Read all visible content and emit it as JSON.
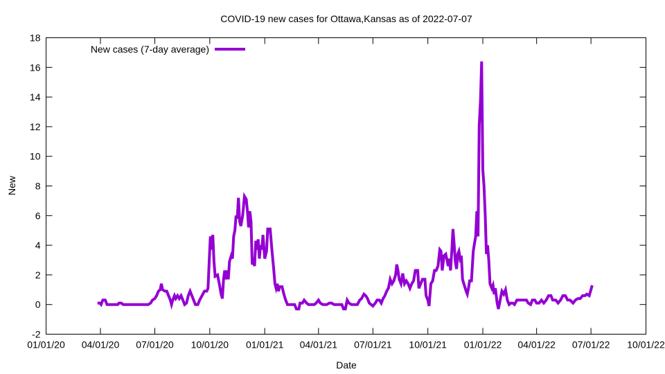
{
  "chart_data": {
    "type": "line",
    "title": "COVID-19 new cases for Ottawa,Kansas as of 2022-07-07",
    "xlabel": "Date",
    "ylabel": "New",
    "ylim": [
      -2,
      18
    ],
    "xlim": [
      "2020-01-01",
      "2022-10-01"
    ],
    "yticks": [
      -2,
      0,
      2,
      4,
      6,
      8,
      10,
      12,
      14,
      16,
      18
    ],
    "xticks": [
      {
        "date": "2020-01-01",
        "label": "01/01/20"
      },
      {
        "date": "2020-04-01",
        "label": "04/01/20"
      },
      {
        "date": "2020-07-01",
        "label": "07/01/20"
      },
      {
        "date": "2020-10-01",
        "label": "10/01/20"
      },
      {
        "date": "2021-01-01",
        "label": "01/01/21"
      },
      {
        "date": "2021-04-01",
        "label": "04/01/21"
      },
      {
        "date": "2021-07-01",
        "label": "07/01/21"
      },
      {
        "date": "2021-10-01",
        "label": "10/01/21"
      },
      {
        "date": "2022-01-01",
        "label": "01/01/22"
      },
      {
        "date": "2022-04-01",
        "label": "04/01/22"
      },
      {
        "date": "2022-07-01",
        "label": "07/01/22"
      },
      {
        "date": "2022-10-01",
        "label": "10/01/22"
      }
    ],
    "grid": false,
    "legend_position": "top-left",
    "series": [
      {
        "name": "New cases (7-day average)",
        "color": "#9400d3",
        "points": [
          [
            "2020-03-27",
            0.1
          ],
          [
            "2020-03-31",
            0.1
          ],
          [
            "2020-04-02",
            0.0
          ],
          [
            "2020-04-05",
            0.3
          ],
          [
            "2020-04-09",
            0.3
          ],
          [
            "2020-04-12",
            0.0
          ],
          [
            "2020-04-30",
            0.0
          ],
          [
            "2020-05-02",
            0.1
          ],
          [
            "2020-05-06",
            0.1
          ],
          [
            "2020-05-09",
            0.0
          ],
          [
            "2020-06-20",
            0.0
          ],
          [
            "2020-06-24",
            0.1
          ],
          [
            "2020-06-27",
            0.3
          ],
          [
            "2020-07-01",
            0.4
          ],
          [
            "2020-07-04",
            0.6
          ],
          [
            "2020-07-07",
            0.9
          ],
          [
            "2020-07-10",
            1.0
          ],
          [
            "2020-07-12",
            1.4
          ],
          [
            "2020-07-14",
            1.0
          ],
          [
            "2020-07-18",
            0.9
          ],
          [
            "2020-07-21",
            0.9
          ],
          [
            "2020-07-24",
            0.6
          ],
          [
            "2020-07-27",
            0.3
          ],
          [
            "2020-07-29",
            0.0
          ],
          [
            "2020-07-31",
            0.3
          ],
          [
            "2020-08-03",
            0.6
          ],
          [
            "2020-08-05",
            0.4
          ],
          [
            "2020-08-08",
            0.6
          ],
          [
            "2020-08-11",
            0.4
          ],
          [
            "2020-08-14",
            0.6
          ],
          [
            "2020-08-17",
            0.3
          ],
          [
            "2020-08-20",
            0.0
          ],
          [
            "2020-08-23",
            0.1
          ],
          [
            "2020-08-26",
            0.6
          ],
          [
            "2020-08-29",
            0.9
          ],
          [
            "2020-09-01",
            0.6
          ],
          [
            "2020-09-04",
            0.3
          ],
          [
            "2020-09-07",
            0.0
          ],
          [
            "2020-09-11",
            0.0
          ],
          [
            "2020-09-14",
            0.3
          ],
          [
            "2020-09-18",
            0.6
          ],
          [
            "2020-09-22",
            0.9
          ],
          [
            "2020-09-26",
            0.9
          ],
          [
            "2020-09-28",
            1.1
          ],
          [
            "2020-09-30",
            2.9
          ],
          [
            "2020-10-02",
            4.6
          ],
          [
            "2020-10-04",
            3.7
          ],
          [
            "2020-10-06",
            4.7
          ],
          [
            "2020-10-08",
            2.9
          ],
          [
            "2020-10-10",
            1.9
          ],
          [
            "2020-10-14",
            2.0
          ],
          [
            "2020-10-17",
            1.4
          ],
          [
            "2020-10-20",
            0.7
          ],
          [
            "2020-10-22",
            0.4
          ],
          [
            "2020-10-24",
            1.7
          ],
          [
            "2020-10-26",
            2.3
          ],
          [
            "2020-10-28",
            1.7
          ],
          [
            "2020-10-30",
            2.3
          ],
          [
            "2020-11-01",
            1.7
          ],
          [
            "2020-11-03",
            2.9
          ],
          [
            "2020-11-06",
            3.3
          ],
          [
            "2020-11-08",
            3.1
          ],
          [
            "2020-11-10",
            4.6
          ],
          [
            "2020-11-12",
            5.0
          ],
          [
            "2020-11-14",
            6.0
          ],
          [
            "2020-11-16",
            5.8
          ],
          [
            "2020-11-18",
            7.2
          ],
          [
            "2020-11-20",
            5.6
          ],
          [
            "2020-11-22",
            5.3
          ],
          [
            "2020-11-25",
            6.0
          ],
          [
            "2020-11-28",
            7.3
          ],
          [
            "2020-12-01",
            7.1
          ],
          [
            "2020-12-03",
            6.3
          ],
          [
            "2020-12-05",
            5.2
          ],
          [
            "2020-12-07",
            6.3
          ],
          [
            "2020-12-09",
            5.6
          ],
          [
            "2020-12-11",
            2.7
          ],
          [
            "2020-12-13",
            2.9
          ],
          [
            "2020-12-15",
            2.6
          ],
          [
            "2020-12-17",
            4.3
          ],
          [
            "2020-12-19",
            3.7
          ],
          [
            "2020-12-21",
            4.4
          ],
          [
            "2020-12-23",
            3.1
          ],
          [
            "2020-12-25",
            4.0
          ],
          [
            "2020-12-27",
            3.7
          ],
          [
            "2020-12-29",
            4.7
          ],
          [
            "2021-01-01",
            3.1
          ],
          [
            "2021-01-04",
            3.6
          ],
          [
            "2021-01-06",
            5.1
          ],
          [
            "2021-01-10",
            5.1
          ],
          [
            "2021-01-13",
            3.7
          ],
          [
            "2021-01-16",
            2.4
          ],
          [
            "2021-01-18",
            1.4
          ],
          [
            "2021-01-20",
            1.1
          ],
          [
            "2021-01-22",
            1.4
          ],
          [
            "2021-01-24",
            0.9
          ],
          [
            "2021-01-26",
            1.2
          ],
          [
            "2021-01-30",
            1.2
          ],
          [
            "2021-02-02",
            0.7
          ],
          [
            "2021-02-05",
            0.3
          ],
          [
            "2021-02-08",
            0.0
          ],
          [
            "2021-02-20",
            0.0
          ],
          [
            "2021-02-23",
            -0.3
          ],
          [
            "2021-02-27",
            -0.3
          ],
          [
            "2021-03-01",
            0.1
          ],
          [
            "2021-03-05",
            0.1
          ],
          [
            "2021-03-08",
            0.3
          ],
          [
            "2021-03-12",
            0.1
          ],
          [
            "2021-03-15",
            0.0
          ],
          [
            "2021-03-25",
            0.0
          ],
          [
            "2021-03-28",
            0.1
          ],
          [
            "2021-04-01",
            0.3
          ],
          [
            "2021-04-04",
            0.1
          ],
          [
            "2021-04-08",
            0.0
          ],
          [
            "2021-04-15",
            0.0
          ],
          [
            "2021-04-19",
            0.1
          ],
          [
            "2021-04-23",
            0.1
          ],
          [
            "2021-04-27",
            0.0
          ],
          [
            "2021-05-10",
            0.0
          ],
          [
            "2021-05-13",
            -0.3
          ],
          [
            "2021-05-16",
            -0.3
          ],
          [
            "2021-05-19",
            0.3
          ],
          [
            "2021-05-22",
            0.1
          ],
          [
            "2021-05-26",
            0.0
          ],
          [
            "2021-06-05",
            0.0
          ],
          [
            "2021-06-09",
            0.3
          ],
          [
            "2021-06-12",
            0.4
          ],
          [
            "2021-06-16",
            0.7
          ],
          [
            "2021-06-19",
            0.6
          ],
          [
            "2021-06-22",
            0.4
          ],
          [
            "2021-06-25",
            0.1
          ],
          [
            "2021-06-28",
            0.0
          ],
          [
            "2021-07-01",
            -0.1
          ],
          [
            "2021-07-05",
            0.1
          ],
          [
            "2021-07-08",
            0.3
          ],
          [
            "2021-07-12",
            0.3
          ],
          [
            "2021-07-15",
            0.1
          ],
          [
            "2021-07-18",
            0.4
          ],
          [
            "2021-07-21",
            0.6
          ],
          [
            "2021-07-24",
            0.9
          ],
          [
            "2021-07-27",
            1.1
          ],
          [
            "2021-07-30",
            1.7
          ],
          [
            "2021-08-02",
            1.4
          ],
          [
            "2021-08-05",
            1.6
          ],
          [
            "2021-08-08",
            2.0
          ],
          [
            "2021-08-10",
            2.7
          ],
          [
            "2021-08-12",
            2.3
          ],
          [
            "2021-08-14",
            1.7
          ],
          [
            "2021-08-17",
            1.4
          ],
          [
            "2021-08-20",
            2.1
          ],
          [
            "2021-08-23",
            1.4
          ],
          [
            "2021-08-26",
            1.6
          ],
          [
            "2021-08-29",
            1.4
          ],
          [
            "2021-09-01",
            1.1
          ],
          [
            "2021-09-04",
            1.4
          ],
          [
            "2021-09-07",
            1.6
          ],
          [
            "2021-09-10",
            2.3
          ],
          [
            "2021-09-14",
            2.3
          ],
          [
            "2021-09-16",
            1.1
          ],
          [
            "2021-09-19",
            1.4
          ],
          [
            "2021-09-22",
            1.7
          ],
          [
            "2021-09-26",
            1.7
          ],
          [
            "2021-09-28",
            0.6
          ],
          [
            "2021-10-01",
            0.3
          ],
          [
            "2021-10-03",
            -0.1
          ],
          [
            "2021-10-06",
            1.4
          ],
          [
            "2021-10-09",
            1.6
          ],
          [
            "2021-10-12",
            2.3
          ],
          [
            "2021-10-15",
            2.3
          ],
          [
            "2021-10-18",
            2.6
          ],
          [
            "2021-10-21",
            3.7
          ],
          [
            "2021-10-23",
            3.6
          ],
          [
            "2021-10-25",
            2.3
          ],
          [
            "2021-10-28",
            3.3
          ],
          [
            "2021-10-31",
            3.4
          ],
          [
            "2021-11-02",
            3.0
          ],
          [
            "2021-11-04",
            2.6
          ],
          [
            "2021-11-06",
            3.1
          ],
          [
            "2021-11-08",
            2.3
          ],
          [
            "2021-11-10",
            3.6
          ],
          [
            "2021-11-12",
            5.1
          ],
          [
            "2021-11-14",
            4.1
          ],
          [
            "2021-11-16",
            2.9
          ],
          [
            "2021-11-18",
            2.4
          ],
          [
            "2021-11-20",
            3.4
          ],
          [
            "2021-11-22",
            3.6
          ],
          [
            "2021-11-24",
            3.1
          ],
          [
            "2021-11-26",
            3.3
          ],
          [
            "2021-11-28",
            1.7
          ],
          [
            "2021-12-01",
            1.3
          ],
          [
            "2021-12-04",
            0.9
          ],
          [
            "2021-12-06",
            0.7
          ],
          [
            "2021-12-08",
            1.1
          ],
          [
            "2021-12-10",
            1.6
          ],
          [
            "2021-12-13",
            1.6
          ],
          [
            "2021-12-16",
            3.6
          ],
          [
            "2021-12-18",
            4.1
          ],
          [
            "2021-12-20",
            4.6
          ],
          [
            "2021-12-22",
            6.3
          ],
          [
            "2021-12-24",
            4.6
          ],
          [
            "2021-12-26",
            12.1
          ],
          [
            "2021-12-28",
            13.7
          ],
          [
            "2021-12-30",
            16.4
          ],
          [
            "2022-01-01",
            9.1
          ],
          [
            "2022-01-03",
            8.0
          ],
          [
            "2022-01-05",
            6.0
          ],
          [
            "2022-01-07",
            3.4
          ],
          [
            "2022-01-09",
            4.0
          ],
          [
            "2022-01-11",
            3.0
          ],
          [
            "2022-01-13",
            1.4
          ],
          [
            "2022-01-16",
            1.1
          ],
          [
            "2022-01-18",
            1.3
          ],
          [
            "2022-01-20",
            0.7
          ],
          [
            "2022-01-22",
            1.1
          ],
          [
            "2022-01-25",
            0.1
          ],
          [
            "2022-01-27",
            -0.3
          ],
          [
            "2022-01-30",
            0.3
          ],
          [
            "2022-02-02",
            0.9
          ],
          [
            "2022-02-05",
            0.7
          ],
          [
            "2022-02-08",
            1.0
          ],
          [
            "2022-02-11",
            0.3
          ],
          [
            "2022-02-14",
            0.0
          ],
          [
            "2022-02-17",
            0.1
          ],
          [
            "2022-02-20",
            0.1
          ],
          [
            "2022-02-23",
            0.0
          ],
          [
            "2022-02-27",
            0.3
          ],
          [
            "2022-03-15",
            0.3
          ],
          [
            "2022-03-18",
            0.1
          ],
          [
            "2022-03-22",
            0.0
          ],
          [
            "2022-03-25",
            0.3
          ],
          [
            "2022-03-29",
            0.3
          ],
          [
            "2022-04-01",
            0.1
          ],
          [
            "2022-04-05",
            0.1
          ],
          [
            "2022-04-09",
            0.3
          ],
          [
            "2022-04-13",
            0.1
          ],
          [
            "2022-04-17",
            0.3
          ],
          [
            "2022-04-21",
            0.6
          ],
          [
            "2022-04-25",
            0.6
          ],
          [
            "2022-04-28",
            0.3
          ],
          [
            "2022-05-03",
            0.3
          ],
          [
            "2022-05-07",
            0.1
          ],
          [
            "2022-05-11",
            0.3
          ],
          [
            "2022-05-15",
            0.6
          ],
          [
            "2022-05-19",
            0.6
          ],
          [
            "2022-05-23",
            0.3
          ],
          [
            "2022-05-27",
            0.3
          ],
          [
            "2022-06-01",
            0.1
          ],
          [
            "2022-06-05",
            0.3
          ],
          [
            "2022-06-09",
            0.4
          ],
          [
            "2022-06-13",
            0.4
          ],
          [
            "2022-06-17",
            0.6
          ],
          [
            "2022-06-21",
            0.6
          ],
          [
            "2022-06-24",
            0.7
          ],
          [
            "2022-06-28",
            0.6
          ],
          [
            "2022-07-01",
            1.0
          ],
          [
            "2022-07-03",
            1.3
          ]
        ]
      }
    ]
  }
}
